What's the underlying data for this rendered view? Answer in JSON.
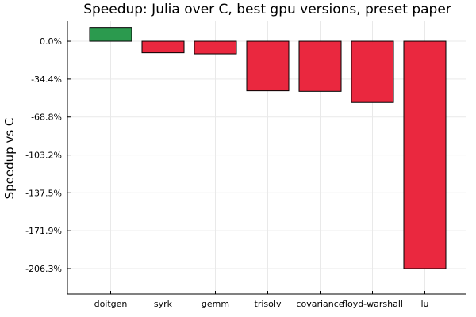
{
  "chart_data": {
    "type": "bar",
    "title": "Speedup: Julia over C, best gpu versions, preset paper",
    "xlabel": "",
    "ylabel": "Speedup vs C",
    "categories": [
      "doitgen",
      "syrk",
      "gemm",
      "trisolv",
      "covariance",
      "floyd-warshall",
      "lu"
    ],
    "values": [
      12.5,
      -10.5,
      -11.5,
      -45.0,
      -45.5,
      -55.5,
      -206.3
    ],
    "value_unit": "%",
    "ylim": [
      -229.3,
      18.0
    ],
    "yticks": [
      0.0,
      -34.4,
      -68.8,
      -103.2,
      -137.5,
      -171.9,
      -206.3
    ],
    "ytick_labels": [
      "0.0%",
      "-34.4%",
      "-68.8%",
      "-103.2%",
      "-137.5%",
      "-171.9%",
      "-206.3%"
    ],
    "grid": true,
    "legend": "none",
    "colors": {
      "positive": "#2b9a4e",
      "negative": "#ea283f"
    }
  }
}
